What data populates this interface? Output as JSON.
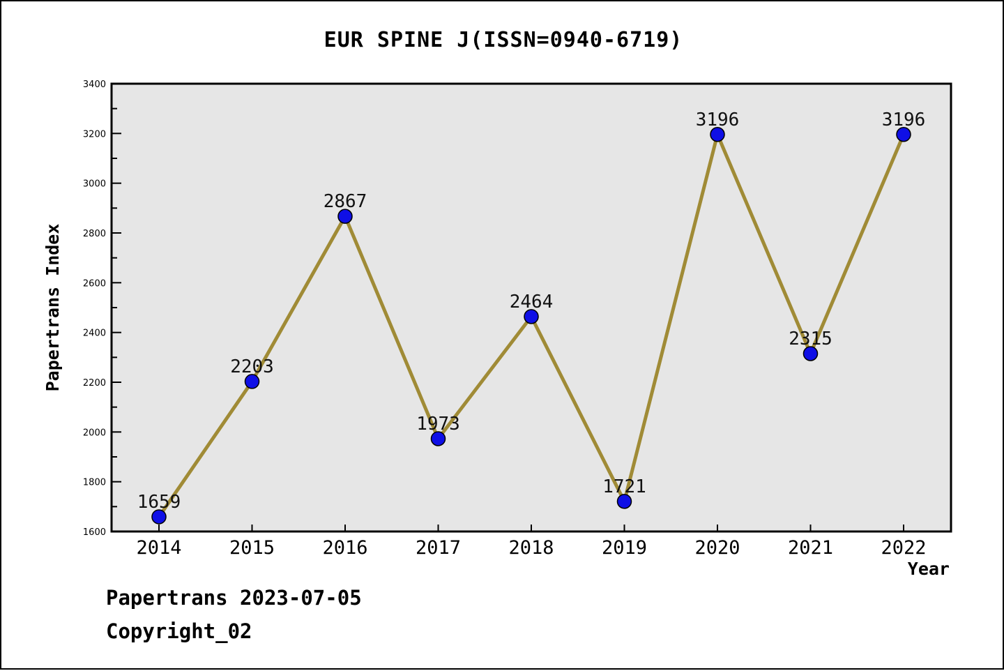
{
  "title": "EUR SPINE J(ISSN=0940-6719)",
  "footer": {
    "source_line": "Papertrans 2023-07-05",
    "copyright_line": "Copyright_02"
  },
  "chart_data": {
    "type": "line",
    "title": "EUR SPINE J(ISSN=0940-6719)",
    "xlabel": "Year",
    "ylabel": "Papertrans Index",
    "categories": [
      "2014",
      "2015",
      "2016",
      "2017",
      "2018",
      "2019",
      "2020",
      "2021",
      "2022"
    ],
    "values": [
      1659,
      2203,
      2867,
      1973,
      2464,
      1721,
      3196,
      2315,
      3196
    ],
    "ylim": [
      1600,
      3400
    ],
    "ytick_step": 200,
    "yminor_step": 100,
    "grid": false,
    "legend": "none",
    "colors": {
      "line": "#a08b36",
      "marker_fill": "#0f0fe6",
      "marker_edge": "#000000",
      "plot_background": "#e6e6e6",
      "frame": "#000000",
      "text": "#000000"
    }
  }
}
